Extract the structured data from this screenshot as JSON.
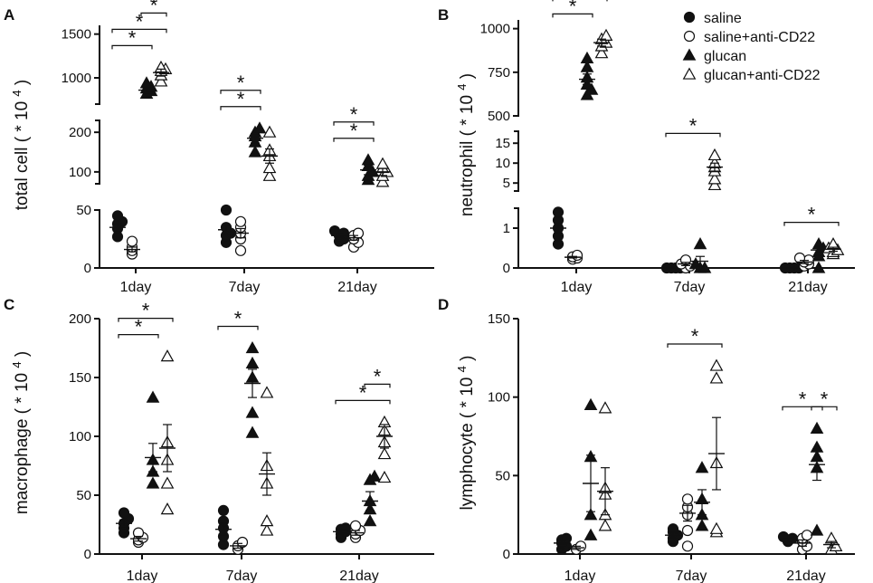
{
  "legend": [
    {
      "label": "saline",
      "marker": "circle",
      "filled": true
    },
    {
      "label": "saline+anti-CD22",
      "marker": "circle",
      "filled": false
    },
    {
      "label": "glucan",
      "marker": "triangle",
      "filled": true
    },
    {
      "label": "glucan+anti-CD22",
      "marker": "triangle",
      "filled": false
    }
  ],
  "chart_data": [
    {
      "type": "scatter",
      "panel": "A",
      "ylabel_base": "total cell ( * 10",
      "ylabel_sup": "4",
      "ylabel_end": ")",
      "categories": [
        "1day",
        "7day",
        "21day"
      ],
      "axis_segments": [
        {
          "range": [
            0,
            50
          ],
          "ticks": [
            0,
            50
          ]
        },
        {
          "range": [
            70,
            230
          ],
          "ticks": [
            100,
            200
          ]
        },
        {
          "range": [
            700,
            1600
          ],
          "ticks": [
            1000,
            1500
          ]
        }
      ],
      "series": [
        {
          "name": "saline",
          "values": [
            [
              27,
              34,
              38,
              40,
              45
            ],
            [
              22,
              28,
              30,
              35,
              50
            ],
            [
              23,
              25,
              28,
              30,
              32
            ]
          ],
          "mean": [
            35,
            33,
            28
          ],
          "sem": [
            3,
            4,
            1.5
          ]
        },
        {
          "name": "saline+anti-CD22",
          "values": [
            [
              12,
              15,
              18,
              23
            ],
            [
              15,
              25,
              30,
              35,
              40
            ],
            [
              18,
              22,
              25,
              28,
              30
            ]
          ],
          "mean": [
            16,
            30,
            26
          ],
          "sem": [
            2,
            4,
            2
          ]
        },
        {
          "name": "glucan",
          "values": [
            [
              820,
              850,
              880,
              900,
              940
            ],
            [
              150,
              175,
              190,
              200,
              210
            ],
            [
              80,
              90,
              100,
              115,
              130
            ]
          ],
          "mean": [
            860,
            185,
            105
          ],
          "sem": [
            30,
            12,
            12
          ]
        },
        {
          "name": "glucan+anti-CD22",
          "values": [
            [
              960,
              1030,
              1080,
              1100,
              1120
            ],
            [
              90,
              110,
              140,
              155,
              200
            ],
            [
              75,
              90,
              100,
              110,
              120
            ]
          ],
          "mean": [
            1060,
            140,
            100
          ],
          "sem": [
            40,
            18,
            9
          ]
        }
      ],
      "brackets": [
        {
          "cat": 0,
          "from": 0,
          "to": 2,
          "level": 0,
          "label": "*"
        },
        {
          "cat": 0,
          "from": 0,
          "to": 3,
          "level": 1,
          "label": "*"
        },
        {
          "cat": 0,
          "from": 2,
          "to": 3,
          "level": 2,
          "label": "*"
        },
        {
          "cat": 1,
          "from": 0,
          "to": 2,
          "level": 0,
          "label": "*"
        },
        {
          "cat": 1,
          "from": 0,
          "to": 2,
          "level": 1,
          "label": "*"
        },
        {
          "cat": 2,
          "from": 0,
          "to": 2,
          "level": 0,
          "label": "*"
        },
        {
          "cat": 2,
          "from": 0,
          "to": 2,
          "level": 1,
          "label": "*"
        }
      ]
    },
    {
      "type": "scatter",
      "panel": "B",
      "ylabel_base": "neutrophil ( * 10",
      "ylabel_sup": "4",
      "ylabel_end": ")",
      "categories": [
        "1day",
        "7day",
        "21day"
      ],
      "axis_segments": [
        {
          "range": [
            0,
            1.5
          ],
          "ticks": [
            0,
            1
          ]
        },
        {
          "range": [
            3,
            18
          ],
          "ticks": [
            5,
            10,
            15
          ]
        },
        {
          "range": [
            500,
            1050
          ],
          "ticks": [
            500,
            750,
            1000
          ]
        }
      ],
      "series": [
        {
          "name": "saline",
          "values": [
            [
              0.6,
              0.8,
              1.0,
              1.2,
              1.4
            ],
            [
              0,
              0,
              0,
              0
            ],
            [
              0,
              0,
              0,
              0
            ]
          ],
          "mean": [
            1.0,
            0,
            0
          ],
          "sem": [
            0.12,
            0,
            0
          ]
        },
        {
          "name": "saline+anti-CD22",
          "values": [
            [
              0.22,
              0.25,
              0.28,
              0.32
            ],
            [
              0,
              0.05,
              0.1,
              0.2
            ],
            [
              0.05,
              0.1,
              0.15,
              0.2,
              0.25
            ]
          ],
          "mean": [
            0.27,
            0.1,
            0.15
          ],
          "sem": [
            0.02,
            0.04,
            0.04
          ]
        },
        {
          "name": "glucan",
          "values": [
            [
              620,
              650,
              680,
              720,
              780,
              830
            ],
            [
              0,
              0,
              0.1,
              0.6
            ],
            [
              0,
              0.3,
              0.4,
              0.5,
              0.6
            ]
          ],
          "mean": [
            710,
            0.17,
            0.45
          ],
          "sem": [
            30,
            0.12,
            0.1
          ]
        },
        {
          "name": "glucan+anti-CD22",
          "values": [
            [
              860,
              900,
              920,
              940,
              960
            ],
            [
              4.5,
              6,
              8,
              9,
              10,
              12
            ],
            [
              0.35,
              0.4,
              0.45,
              0.5,
              0.6
            ]
          ],
          "mean": [
            920,
            9,
            0.47
          ],
          "sem": [
            20,
            1,
            0.05
          ]
        }
      ],
      "brackets": [
        {
          "cat": 0,
          "from": 0,
          "to": 2,
          "level": 0,
          "label": "*"
        },
        {
          "cat": 0,
          "from": 0,
          "to": 3,
          "level": 1,
          "label": "*"
        },
        {
          "cat": 0,
          "from": 2,
          "to": 3,
          "level": 2,
          "label": "*"
        },
        {
          "cat": 1,
          "from": 0,
          "to": 3,
          "level": 0,
          "label": "*"
        },
        {
          "cat": 2,
          "from": 0,
          "to": 3,
          "level": 0,
          "label": "*"
        }
      ]
    },
    {
      "type": "scatter",
      "panel": "C",
      "ylabel_base": "macrophage ( * 10",
      "ylabel_sup": "4",
      "ylabel_end": ")",
      "categories": [
        "1day",
        "7day",
        "21day"
      ],
      "axis_segments": [
        {
          "range": [
            0,
            200
          ],
          "ticks": [
            0,
            50,
            100,
            150,
            200
          ]
        }
      ],
      "series": [
        {
          "name": "saline",
          "values": [
            [
              18,
              22,
              26,
              30,
              35
            ],
            [
              8,
              15,
              22,
              28,
              37
            ],
            [
              14,
              17,
              19,
              21,
              22
            ]
          ],
          "mean": [
            26,
            21,
            19
          ],
          "sem": [
            3,
            5,
            1.5
          ]
        },
        {
          "name": "saline+anti-CD22",
          "values": [
            [
              10,
              12,
              14,
              18
            ],
            [
              4,
              7,
              10
            ],
            [
              14,
              17,
              20,
              24
            ]
          ],
          "mean": [
            13,
            7,
            18
          ],
          "sem": [
            2,
            2,
            2
          ]
        },
        {
          "name": "glucan",
          "values": [
            [
              60,
              70,
              80,
              133
            ],
            [
              103,
              120,
              150,
              162,
              175
            ],
            [
              28,
              38,
              45,
              63,
              66
            ]
          ],
          "mean": [
            82,
            145,
            45
          ],
          "sem": [
            12,
            12,
            8
          ]
        },
        {
          "name": "glucan+anti-CD22",
          "values": [
            [
              38,
              60,
              80,
              95,
              168
            ],
            [
              20,
              28,
              60,
              75,
              137
            ],
            [
              65,
              85,
              95,
              105,
              112
            ]
          ],
          "mean": [
            90,
            68,
            100
          ],
          "sem": [
            20,
            18,
            10
          ]
        }
      ],
      "brackets": [
        {
          "cat": 0,
          "from": 0,
          "to": 2,
          "level": 0,
          "label": "*"
        },
        {
          "cat": 0,
          "from": 0,
          "to": 3,
          "level": 1,
          "label": "*"
        },
        {
          "cat": 1,
          "from": 0,
          "to": 2,
          "level": 0,
          "label": "*"
        },
        {
          "cat": 2,
          "from": 0,
          "to": 3,
          "level": 0,
          "label": "*"
        },
        {
          "cat": 2,
          "from": 2,
          "to": 3,
          "level": 1,
          "label": "*"
        }
      ]
    },
    {
      "type": "scatter",
      "panel": "D",
      "ylabel_base": "lymphocyte ( * 10",
      "ylabel_sup": "4",
      "ylabel_end": ")",
      "categories": [
        "1day",
        "7day",
        "21day"
      ],
      "axis_segments": [
        {
          "range": [
            0,
            150
          ],
          "ticks": [
            0,
            50,
            100,
            150
          ]
        }
      ],
      "series": [
        {
          "name": "saline",
          "values": [
            [
              3,
              5,
              7,
              9,
              10
            ],
            [
              8,
              10,
              12,
              14,
              16
            ],
            [
              8,
              9,
              10,
              11
            ]
          ],
          "mean": [
            7,
            12,
            9
          ],
          "sem": [
            1.5,
            2,
            1
          ]
        },
        {
          "name": "saline+anti-CD22",
          "values": [
            [
              3,
              5
            ],
            [
              5,
              15,
              25,
              30,
              35
            ],
            [
              3,
              5,
              8,
              10,
              12
            ]
          ],
          "mean": [
            4,
            26,
            7
          ],
          "sem": [
            1,
            5,
            2
          ]
        },
        {
          "name": "glucan",
          "values": [
            [
              12,
              25,
              62,
              95
            ],
            [
              18,
              25,
              35,
              55
            ],
            [
              15,
              55,
              62,
              68,
              80
            ]
          ],
          "mean": [
            45,
            33,
            57
          ],
          "sem": [
            18,
            8,
            10
          ]
        },
        {
          "name": "glucan+anti-CD22",
          "values": [
            [
              18,
              25,
              38,
              42,
              93
            ],
            [
              14,
              16,
              58,
              112,
              120
            ],
            [
              3,
              5,
              10
            ]
          ],
          "mean": [
            40,
            64,
            6
          ],
          "sem": [
            15,
            23,
            2
          ]
        }
      ],
      "brackets": [
        {
          "cat": 1,
          "from": 0,
          "to": 3,
          "level": 0,
          "label": "*"
        },
        {
          "cat": 2,
          "from": 0,
          "to": 2,
          "level": 0,
          "label": "*"
        },
        {
          "cat": 2,
          "from": 2,
          "to": 3,
          "level": 0,
          "label": "*"
        }
      ]
    }
  ]
}
